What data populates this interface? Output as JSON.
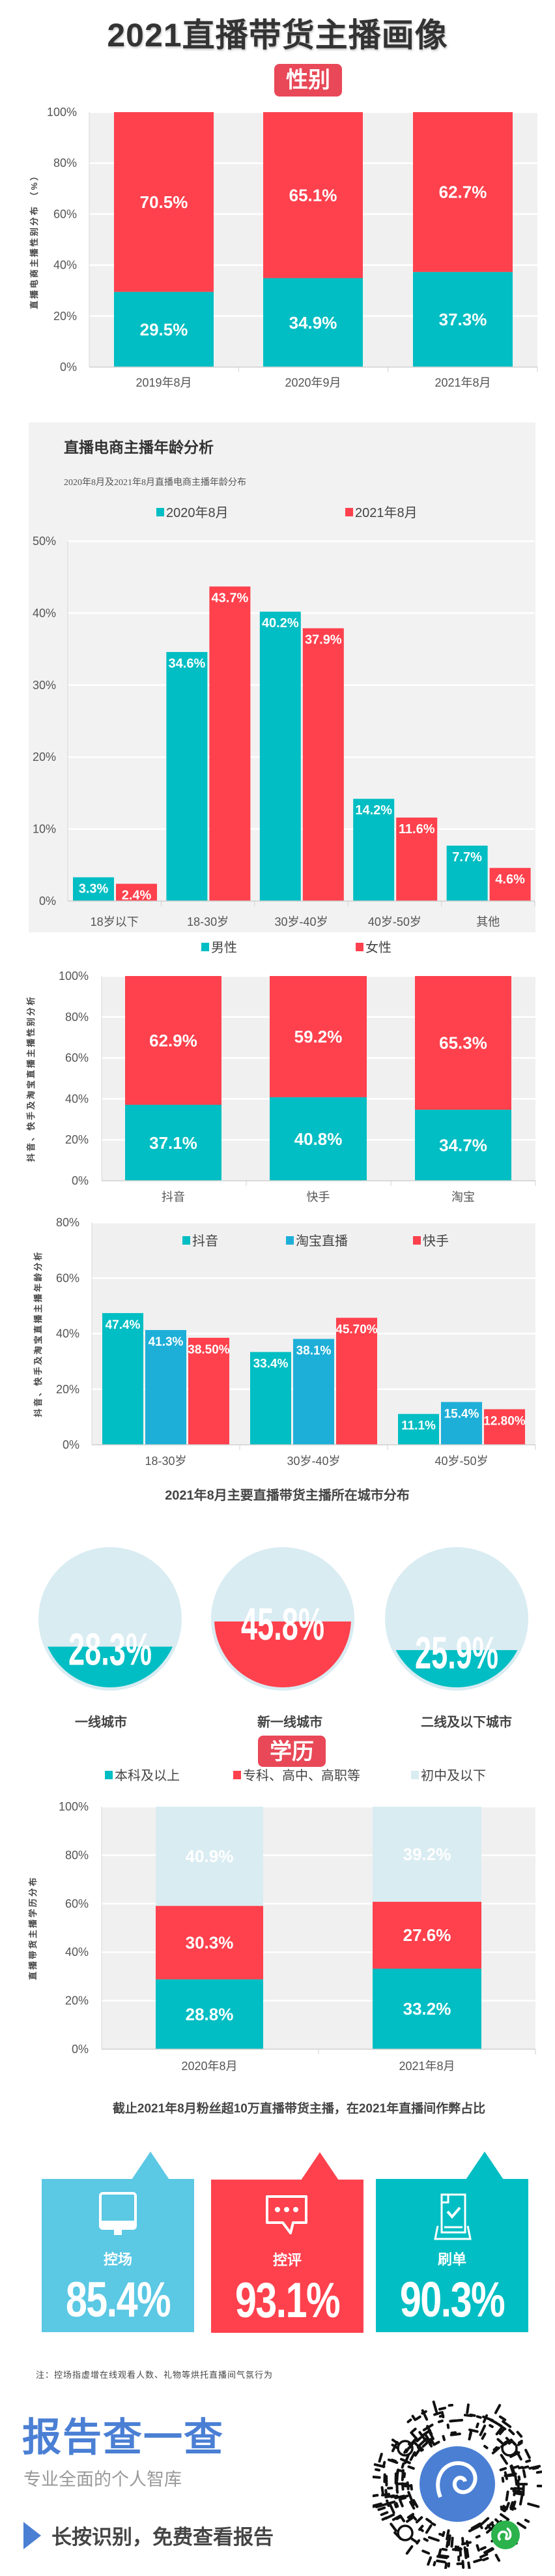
{
  "title": "2021直播带货主播画像",
  "badges": {
    "gender": "性别",
    "education": "学历"
  },
  "colors": {
    "teal": "#00bec3",
    "red": "#fe414d",
    "blue": "#1eafd8",
    "light": "#d9ecf2",
    "sky": "#5bc8e4",
    "brand": "#4a7fd4"
  },
  "chart_data": [
    {
      "type": "bar",
      "stacked": true,
      "categories": [
        "2019年8月",
        "2020年9月",
        "2021年8月"
      ],
      "ylabel": "直播电商主播性别分布 （%）",
      "ylim": [
        0,
        100
      ],
      "yticks": [
        "0%",
        "20%",
        "40%",
        "60%",
        "80%",
        "100%"
      ],
      "grid": true,
      "series": [
        {
          "values": [
            29.5,
            34.9,
            37.3
          ],
          "labels": [
            "29.5%",
            "34.9%",
            "37.3%"
          ],
          "color": "#00bec3"
        },
        {
          "values": [
            70.5,
            65.1,
            62.7
          ],
          "labels": [
            "70.5%",
            "65.1%",
            "62.7%"
          ],
          "color": "#fe414d"
        }
      ]
    },
    {
      "type": "bar",
      "stacked": false,
      "title": "直播电商主播年龄分析",
      "subtitle": "2020年8月及2021年8月直播电商主播年龄分布",
      "categories": [
        "18岁以下",
        "18-30岁",
        "30岁-40岁",
        "40岁-50岁",
        "其他"
      ],
      "ylim": [
        0,
        50
      ],
      "yticks": [
        "0%",
        "10%",
        "20%",
        "30%",
        "40%",
        "50%"
      ],
      "grid": true,
      "legend": "top",
      "series": [
        {
          "name": "2020年8月",
          "values": [
            3.3,
            34.6,
            40.2,
            14.2,
            7.7
          ],
          "labels": [
            "3.3%",
            "34.6%",
            "40.2%",
            "14.2%",
            "7.7%"
          ],
          "color": "#00bec3"
        },
        {
          "name": "2021年8月",
          "values": [
            2.4,
            43.7,
            37.9,
            11.6,
            4.6
          ],
          "labels": [
            "2.4%",
            "43.7%",
            "37.9%",
            "11.6%",
            "4.6%"
          ],
          "color": "#fe414d"
        }
      ]
    },
    {
      "type": "bar",
      "stacked": true,
      "categories": [
        "抖音",
        "快手",
        "淘宝"
      ],
      "ylabel": "抖音、快手及淘宝直播主播性别分析",
      "ylim": [
        0,
        100
      ],
      "yticks": [
        "0%",
        "20%",
        "40%",
        "60%",
        "80%",
        "100%"
      ],
      "grid": true,
      "legend": "top",
      "series": [
        {
          "name": "男性",
          "values": [
            37.1,
            40.8,
            34.7
          ],
          "labels": [
            "37.1%",
            "40.8%",
            "34.7%"
          ],
          "color": "#00bec3"
        },
        {
          "name": "女性",
          "values": [
            62.9,
            59.2,
            65.3
          ],
          "labels": [
            "62.9%",
            "59.2%",
            "65.3%"
          ],
          "color": "#fe414d"
        }
      ]
    },
    {
      "type": "bar",
      "stacked": false,
      "categories": [
        "18-30岁",
        "30岁-40岁",
        "40岁-50岁"
      ],
      "ylabel": "抖音、快手及淘宝直播主播年龄分析",
      "ylim": [
        0,
        80
      ],
      "yticks": [
        "0%",
        "20%",
        "40%",
        "60%",
        "80%"
      ],
      "grid": true,
      "legend": "top-inside",
      "series": [
        {
          "name": "抖音",
          "values": [
            47.4,
            33.4,
            11.1
          ],
          "labels": [
            "47.4%",
            "33.4%",
            "11.1%"
          ],
          "color": "#00bec3"
        },
        {
          "name": "淘宝直播",
          "values": [
            41.3,
            38.1,
            15.4
          ],
          "labels": [
            "41.3%",
            "38.1%",
            "15.4%"
          ],
          "color": "#1eafd8"
        },
        {
          "name": "快手",
          "values": [
            38.5,
            45.7,
            12.8
          ],
          "labels": [
            "38.50%",
            "45.70%",
            "12.80%"
          ],
          "color": "#fe414d"
        }
      ]
    },
    {
      "type": "gauge",
      "title": "2021年8月主要直播带货主播所在城市分布",
      "categories": [
        "一线城市",
        "新一线城市",
        "二线及以下城市"
      ],
      "values": [
        28.3,
        45.8,
        25.9
      ],
      "labels": [
        "28.3%",
        "45.8%",
        "25.9%"
      ],
      "colors": [
        "#00bec3",
        "#fe414d",
        "#00bec3"
      ],
      "track_color": "#d9ecf2"
    },
    {
      "type": "bar",
      "stacked": true,
      "categories": [
        "2020年8月",
        "2021年8月"
      ],
      "ylabel": "直播带货主播学历分布",
      "ylim": [
        0,
        100
      ],
      "yticks": [
        "0%",
        "20%",
        "40%",
        "60%",
        "80%",
        "100%"
      ],
      "grid": true,
      "legend": "top",
      "series": [
        {
          "name": "本科及以上",
          "values": [
            28.8,
            33.2
          ],
          "labels": [
            "28.8%",
            "33.2%"
          ],
          "color": "#00bec3"
        },
        {
          "name": "专科、高中、高职等",
          "values": [
            30.3,
            27.6
          ],
          "labels": [
            "30.3%",
            "27.6%"
          ],
          "color": "#fe414d"
        },
        {
          "name": "初中及以下",
          "values": [
            40.9,
            39.2
          ],
          "labels": [
            "40.9%",
            "39.2%"
          ],
          "color": "#d9ecf2"
        }
      ]
    }
  ],
  "fraud": {
    "caption": "截止2021年8月粉丝超10万直播带货主播，在2021年直播间作弊占比",
    "items": [
      {
        "label": "控场",
        "value": "85.4%",
        "icon": "monitor-icon",
        "color": "#5bc8e4"
      },
      {
        "label": "控评",
        "value": "93.1%",
        "icon": "chat-bubble-icon",
        "color": "#fe414d"
      },
      {
        "label": "刷单",
        "value": "90.3%",
        "icon": "document-check-icon",
        "color": "#00bec3"
      }
    ]
  },
  "note": "注：控场指虚增在线观看人数、礼物等烘托直播间气氛行为",
  "footer": {
    "brand": "报告查一查",
    "tagline": "专业全面的个人智库",
    "cta": "长按识别，免费查看报告"
  }
}
